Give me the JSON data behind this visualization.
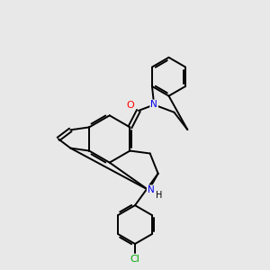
{
  "background_color": "#e8e8e8",
  "bond_color": "#000000",
  "atom_colors": {
    "N": "#0000ee",
    "O": "#ff0000",
    "Cl": "#00aa00",
    "C": "#000000"
  },
  "figsize": [
    3.0,
    3.0
  ],
  "dpi": 100
}
